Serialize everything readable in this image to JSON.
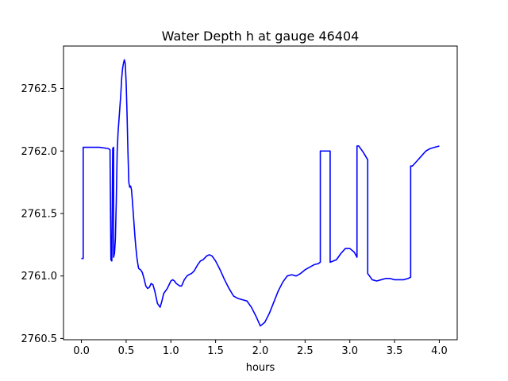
{
  "chart_data": {
    "type": "line",
    "title": "Water Depth h at gauge 46404",
    "xlabel": "hours",
    "ylabel": "",
    "xlim": [
      -0.2,
      4.2
    ],
    "ylim": [
      2760.49,
      2762.84
    ],
    "xticks": [
      0.0,
      0.5,
      1.0,
      1.5,
      2.0,
      2.5,
      3.0,
      3.5,
      4.0
    ],
    "xtick_labels": [
      "0.0",
      "0.5",
      "1.0",
      "1.5",
      "2.0",
      "2.5",
      "3.0",
      "3.5",
      "4.0"
    ],
    "yticks": [
      2760.5,
      2761.0,
      2761.5,
      2762.0,
      2762.5
    ],
    "ytick_labels": [
      "2760.5",
      "2761.0",
      "2761.5",
      "2762.0",
      "2762.5"
    ],
    "grid": false,
    "series": [
      {
        "color": "#0000ff",
        "x": [
          0.0,
          0.02,
          0.02,
          0.1,
          0.2,
          0.3,
          0.32,
          0.33,
          0.34,
          0.35,
          0.36,
          0.36,
          0.37,
          0.38,
          0.39,
          0.4,
          0.41,
          0.42,
          0.43,
          0.44,
          0.45,
          0.46,
          0.47,
          0.48,
          0.49,
          0.5,
          0.51,
          0.52,
          0.53,
          0.54,
          0.55,
          0.56,
          0.57,
          0.58,
          0.59,
          0.6,
          0.61,
          0.62,
          0.63,
          0.64,
          0.66,
          0.68,
          0.7,
          0.72,
          0.74,
          0.76,
          0.78,
          0.8,
          0.82,
          0.85,
          0.88,
          0.9,
          0.92,
          0.94,
          0.96,
          0.98,
          1.0,
          1.02,
          1.04,
          1.06,
          1.08,
          1.1,
          1.12,
          1.15,
          1.18,
          1.2,
          1.23,
          1.26,
          1.3,
          1.33,
          1.36,
          1.4,
          1.43,
          1.46,
          1.5,
          1.55,
          1.6,
          1.65,
          1.7,
          1.75,
          1.8,
          1.85,
          1.9,
          1.95,
          2.0,
          2.05,
          2.1,
          2.15,
          2.2,
          2.25,
          2.3,
          2.35,
          2.4,
          2.45,
          2.5,
          2.55,
          2.6,
          2.65,
          2.67,
          2.67,
          2.7,
          2.75,
          2.78,
          2.78,
          2.85,
          2.9,
          2.95,
          3.0,
          3.05,
          3.08,
          3.08,
          3.1,
          3.15,
          3.2,
          3.2,
          3.25,
          3.3,
          3.35,
          3.4,
          3.45,
          3.5,
          3.55,
          3.6,
          3.65,
          3.68,
          3.68,
          3.7,
          3.75,
          3.8,
          3.85,
          3.9,
          3.95,
          4.0
        ],
        "y": [
          2761.14,
          2761.14,
          2762.03,
          2762.03,
          2762.03,
          2762.02,
          2762.01,
          2761.13,
          2761.12,
          2762.02,
          2762.03,
          2761.15,
          2761.18,
          2761.3,
          2761.6,
          2762.0,
          2762.15,
          2762.25,
          2762.35,
          2762.45,
          2762.58,
          2762.66,
          2762.7,
          2762.73,
          2762.7,
          2762.55,
          2762.3,
          2762.0,
          2761.75,
          2761.71,
          2761.72,
          2761.69,
          2761.6,
          2761.5,
          2761.4,
          2761.3,
          2761.22,
          2761.15,
          2761.1,
          2761.06,
          2761.05,
          2761.03,
          2760.98,
          2760.92,
          2760.9,
          2760.91,
          2760.94,
          2760.93,
          2760.88,
          2760.78,
          2760.75,
          2760.8,
          2760.86,
          2760.88,
          2760.9,
          2760.93,
          2760.96,
          2760.97,
          2760.96,
          2760.94,
          2760.93,
          2760.92,
          2760.92,
          2760.97,
          2761.0,
          2761.01,
          2761.02,
          2761.04,
          2761.09,
          2761.12,
          2761.13,
          2761.16,
          2761.17,
          2761.16,
          2761.12,
          2761.05,
          2760.97,
          2760.9,
          2760.84,
          2760.82,
          2760.81,
          2760.8,
          2760.75,
          2760.68,
          2760.6,
          2760.63,
          2760.7,
          2760.79,
          2760.88,
          2760.95,
          2761.0,
          2761.01,
          2761.0,
          2761.02,
          2761.05,
          2761.07,
          2761.09,
          2761.1,
          2761.11,
          2762.0,
          2762.0,
          2762.0,
          2762.0,
          2761.11,
          2761.13,
          2761.18,
          2761.22,
          2761.22,
          2761.19,
          2761.15,
          2762.04,
          2762.04,
          2761.99,
          2761.93,
          2761.02,
          2760.97,
          2760.96,
          2760.97,
          2760.98,
          2760.98,
          2760.97,
          2760.97,
          2760.97,
          2760.98,
          2760.99,
          2761.88,
          2761.88,
          2761.92,
          2761.96,
          2762.0,
          2762.02,
          2762.03,
          2762.04
        ]
      }
    ]
  }
}
